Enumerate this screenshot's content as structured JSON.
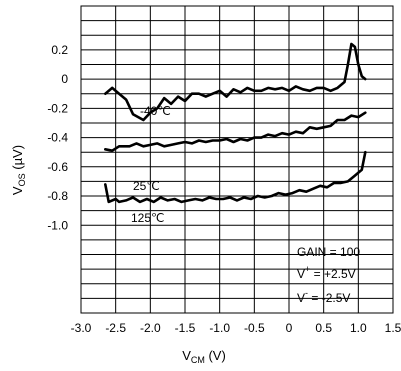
{
  "chart_data": {
    "type": "line",
    "title": "",
    "xlabel": {
      "main": "V",
      "sub": "CM",
      "unit": " (V)"
    },
    "ylabel": {
      "main": "V",
      "sub": "OS",
      "unit": " (µV)"
    },
    "xlim": [
      -3.0,
      1.5
    ],
    "ylim": [
      -1.6,
      0.5
    ],
    "grid": true,
    "x_ticks": [
      "-3.0",
      "-2.5",
      "-2.0",
      "-1.5",
      "-1.0",
      "-0.5",
      "0",
      "0.5",
      "1.0",
      "1.5"
    ],
    "x_tick_values": [
      -3.0,
      -2.5,
      -2.0,
      -1.5,
      -1.0,
      -0.5,
      0,
      0.5,
      1.0,
      1.5
    ],
    "y_ticks": [
      "0.2",
      "0",
      "-0.2",
      "-0.4",
      "-0.6",
      "-0.8",
      "-1.0"
    ],
    "y_tick_values": [
      0.2,
      0,
      -0.2,
      -0.4,
      -0.6,
      -0.8,
      -1.0
    ],
    "series": [
      {
        "name": "-40℃",
        "x": [
          -2.65,
          -2.55,
          -2.45,
          -2.35,
          -2.25,
          -2.1,
          -2.0,
          -1.9,
          -1.8,
          -1.7,
          -1.6,
          -1.5,
          -1.4,
          -1.3,
          -1.2,
          -1.1,
          -1.0,
          -0.9,
          -0.8,
          -0.7,
          -0.6,
          -0.5,
          -0.4,
          -0.3,
          -0.2,
          -0.1,
          0.0,
          0.1,
          0.2,
          0.3,
          0.4,
          0.5,
          0.6,
          0.7,
          0.8,
          0.85,
          0.9,
          0.95,
          1.0,
          1.05,
          1.1
        ],
        "y": [
          -0.1,
          -0.06,
          -0.1,
          -0.14,
          -0.24,
          -0.28,
          -0.23,
          -0.2,
          -0.13,
          -0.17,
          -0.12,
          -0.15,
          -0.1,
          -0.1,
          -0.12,
          -0.1,
          -0.08,
          -0.12,
          -0.07,
          -0.09,
          -0.06,
          -0.08,
          -0.08,
          -0.06,
          -0.07,
          -0.06,
          -0.08,
          -0.05,
          -0.07,
          -0.08,
          -0.06,
          -0.06,
          -0.08,
          -0.06,
          -0.02,
          0.1,
          0.24,
          0.22,
          0.1,
          0.02,
          0.0
        ]
      },
      {
        "name": "25℃",
        "x": [
          -2.65,
          -2.55,
          -2.45,
          -2.3,
          -2.2,
          -2.1,
          -2.0,
          -1.9,
          -1.8,
          -1.7,
          -1.6,
          -1.5,
          -1.4,
          -1.3,
          -1.2,
          -1.1,
          -1.0,
          -0.9,
          -0.8,
          -0.7,
          -0.6,
          -0.5,
          -0.4,
          -0.3,
          -0.2,
          -0.1,
          0.0,
          0.1,
          0.2,
          0.3,
          0.4,
          0.5,
          0.6,
          0.7,
          0.8,
          0.9,
          1.0,
          1.1
        ],
        "y": [
          -0.48,
          -0.49,
          -0.46,
          -0.46,
          -0.44,
          -0.46,
          -0.45,
          -0.44,
          -0.46,
          -0.45,
          -0.44,
          -0.43,
          -0.44,
          -0.42,
          -0.43,
          -0.42,
          -0.42,
          -0.41,
          -0.43,
          -0.41,
          -0.42,
          -0.4,
          -0.4,
          -0.38,
          -0.39,
          -0.37,
          -0.38,
          -0.36,
          -0.37,
          -0.33,
          -0.34,
          -0.33,
          -0.32,
          -0.28,
          -0.28,
          -0.25,
          -0.26,
          -0.23
        ]
      },
      {
        "name": "125℃",
        "x": [
          -2.65,
          -2.6,
          -2.5,
          -2.45,
          -2.35,
          -2.25,
          -2.15,
          -2.05,
          -1.95,
          -1.85,
          -1.75,
          -1.65,
          -1.55,
          -1.45,
          -1.35,
          -1.25,
          -1.15,
          -1.05,
          -0.95,
          -0.85,
          -0.75,
          -0.65,
          -0.55,
          -0.45,
          -0.35,
          -0.25,
          -0.15,
          -0.05,
          0.05,
          0.15,
          0.25,
          0.35,
          0.45,
          0.55,
          0.65,
          0.75,
          0.85,
          0.95,
          1.05,
          1.1
        ],
        "y": [
          -0.72,
          -0.84,
          -0.82,
          -0.84,
          -0.83,
          -0.81,
          -0.84,
          -0.82,
          -0.84,
          -0.81,
          -0.83,
          -0.82,
          -0.84,
          -0.83,
          -0.82,
          -0.83,
          -0.81,
          -0.82,
          -0.82,
          -0.81,
          -0.83,
          -0.81,
          -0.82,
          -0.8,
          -0.81,
          -0.8,
          -0.78,
          -0.79,
          -0.78,
          -0.76,
          -0.77,
          -0.75,
          -0.73,
          -0.74,
          -0.71,
          -0.71,
          -0.7,
          -0.66,
          -0.62,
          -0.5
        ]
      }
    ],
    "annotations": {
      "series_labels": [
        "-40℃",
        "25℃",
        "125℃"
      ],
      "gain": "GAIN = 100",
      "vplus": {
        "main": "V",
        "sup": "+",
        "rest": " = +2.5V"
      },
      "vminus": {
        "main": "V",
        "sup": "-",
        "rest": " = -2.5V"
      }
    },
    "colors": {
      "line": "#000000",
      "grid": "#000000",
      "background": "#ffffff"
    }
  }
}
